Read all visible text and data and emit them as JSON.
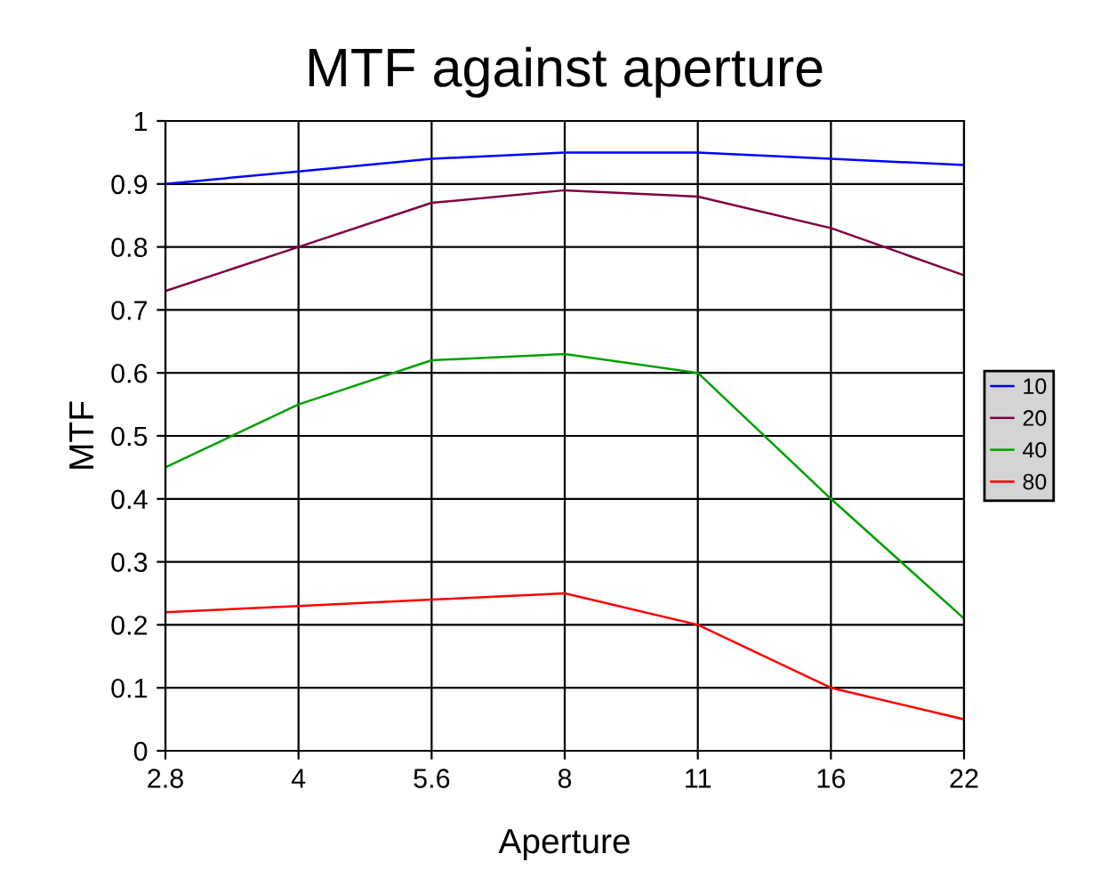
{
  "chart_data": {
    "type": "line",
    "title": "MTF against aperture",
    "xlabel": "Aperture",
    "ylabel": "MTF",
    "categories": [
      "2.8",
      "4",
      "5.6",
      "8",
      "11",
      "16",
      "22"
    ],
    "series": [
      {
        "name": "10",
        "color": "#0000ff",
        "values": [
          0.9,
          0.92,
          0.94,
          0.95,
          0.95,
          0.94,
          0.93
        ]
      },
      {
        "name": "20",
        "color": "#800040",
        "values": [
          0.73,
          0.8,
          0.87,
          0.89,
          0.88,
          0.83,
          0.755
        ]
      },
      {
        "name": "40",
        "color": "#00a000",
        "values": [
          0.45,
          0.55,
          0.62,
          0.63,
          0.6,
          0.4,
          0.21
        ]
      },
      {
        "name": "80",
        "color": "#ff0000",
        "values": [
          0.22,
          0.23,
          0.24,
          0.25,
          0.2,
          0.1,
          0.05
        ]
      }
    ],
    "ylim": [
      0,
      1
    ],
    "yticks": [
      0,
      0.1,
      0.2,
      0.3,
      0.4,
      0.5,
      0.6,
      0.7,
      0.8,
      0.9,
      1
    ],
    "grid": true,
    "legend": "right",
    "marker": "none",
    "line_style": "solid"
  }
}
